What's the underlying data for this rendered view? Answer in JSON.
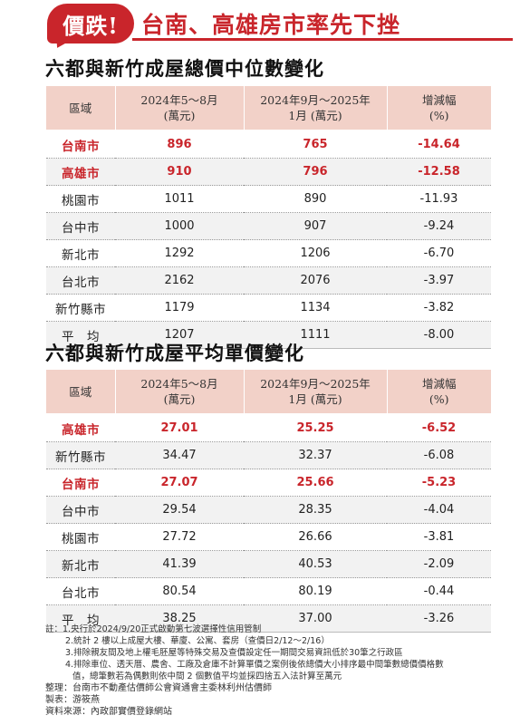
{
  "header": {
    "badge": "價跌!",
    "headline": "台南、高雄房市率先下挫"
  },
  "table1": {
    "title": "六都與新竹成屋總價中位數變化",
    "headers": [
      [
        "區域"
      ],
      [
        "2024年5～8月",
        "(萬元)"
      ],
      [
        "2024年9月～2025年",
        "1月 (萬元)"
      ],
      [
        "增減幅",
        "(%)"
      ]
    ],
    "rows": [
      {
        "region": "台南市",
        "a": "896",
        "b": "765",
        "c": "-14.64",
        "highlight": true
      },
      {
        "region": "高雄市",
        "a": "910",
        "b": "796",
        "c": "-12.58",
        "highlight": true
      },
      {
        "region": "桃園市",
        "a": "1011",
        "b": "890",
        "c": "-11.93",
        "highlight": false
      },
      {
        "region": "台中市",
        "a": "1000",
        "b": "907",
        "c": "-9.24",
        "highlight": false
      },
      {
        "region": "新北市",
        "a": "1292",
        "b": "1206",
        "c": "-6.70",
        "highlight": false
      },
      {
        "region": "台北市",
        "a": "2162",
        "b": "2076",
        "c": "-3.97",
        "highlight": false
      },
      {
        "region": "新竹縣市",
        "a": "1179",
        "b": "1134",
        "c": "-3.82",
        "highlight": false
      },
      {
        "region": "平　均",
        "a": "1207",
        "b": "1111",
        "c": "-8.00",
        "highlight": false
      }
    ]
  },
  "table2": {
    "title": "六都與新竹成屋平均單價變化",
    "headers": [
      [
        "區域"
      ],
      [
        "2024年5～8月",
        "(萬元)"
      ],
      [
        "2024年9月～2025年",
        "1月 (萬元)"
      ],
      [
        "增減幅",
        "(%)"
      ]
    ],
    "rows": [
      {
        "region": "高雄市",
        "a": "27.01",
        "b": "25.25",
        "c": "-6.52",
        "highlight": true
      },
      {
        "region": "新竹縣市",
        "a": "34.47",
        "b": "32.37",
        "c": "-6.08",
        "highlight": false
      },
      {
        "region": "台南市",
        "a": "27.07",
        "b": "25.66",
        "c": "-5.23",
        "highlight": true
      },
      {
        "region": "台中市",
        "a": "29.54",
        "b": "28.35",
        "c": "-4.04",
        "highlight": false
      },
      {
        "region": "桃園市",
        "a": "27.72",
        "b": "26.66",
        "c": "-3.81",
        "highlight": false
      },
      {
        "region": "新北市",
        "a": "41.39",
        "b": "40.53",
        "c": "-2.09",
        "highlight": false
      },
      {
        "region": "台北市",
        "a": "80.54",
        "b": "80.19",
        "c": "-0.44",
        "highlight": false
      },
      {
        "region": "平　均",
        "a": "38.25",
        "b": "37.00",
        "c": "-3.26",
        "highlight": false
      }
    ]
  },
  "notes": {
    "label": "註：",
    "items": [
      "1.央行於2024/9/20正式啟動第七波選擇性信用管制",
      "2.統計 2 樓以上成屋大樓、華廈、公寓、套房（查價日2/12～2/16）",
      "3.排除親友間及地上權毛胚屋等特殊交易及查價設定任一期間交易資訊低於30筆之行政區",
      "4.排除車位、透天厝、農舍、工廠及倉庫不計算單價之案例後依總價大小排序最中間筆數總價價格數",
      "值，總筆數若為偶數則依中間 2 個數值平均並採四捨五入法計算至萬元"
    ],
    "credits": [
      "整理：台南市不動產估價師公會資通會主委林利州估價師",
      "製表：游筱燕",
      "資料來源：內政部實價登錄網站"
    ]
  },
  "colors": {
    "accent": "#c9252b",
    "header_bg": "#f2d1c8",
    "alt_row_bg": "#f2f2f2"
  }
}
